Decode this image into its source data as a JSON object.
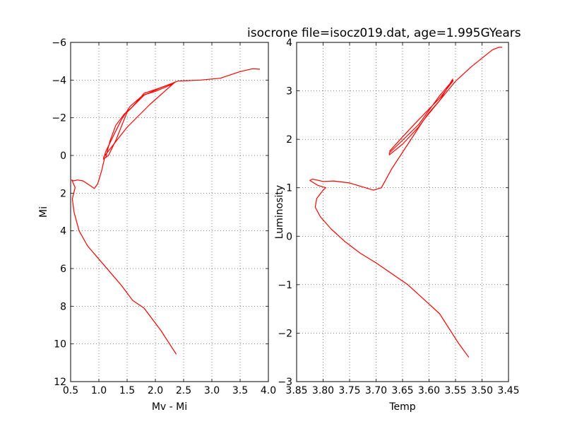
{
  "chart_data": [
    {
      "type": "line",
      "title": "",
      "xlabel": "Mv - Mi",
      "ylabel": "Mi",
      "xlim": [
        0.5,
        4.0
      ],
      "ylim": [
        12,
        -6
      ],
      "y_inverted": true,
      "grid": true,
      "xticks": [
        "0.5",
        "1.0",
        "1.5",
        "2.0",
        "2.5",
        "3.0",
        "3.5",
        "4.0"
      ],
      "yticks": [
        "−6",
        "−4",
        "−2",
        "0",
        "2",
        "4",
        "6",
        "8",
        "10",
        "12"
      ],
      "series_color": "#ff0000",
      "segments": [
        [
          [
            2.37,
            10.55
          ],
          [
            2.1,
            9.3
          ],
          [
            1.8,
            8.1
          ],
          [
            1.6,
            7.7
          ],
          [
            1.4,
            6.9
          ],
          [
            1.2,
            6.2
          ],
          [
            1.0,
            5.5
          ],
          [
            0.8,
            4.8
          ],
          [
            0.65,
            4.0
          ],
          [
            0.56,
            3.0
          ],
          [
            0.53,
            2.3
          ],
          [
            0.58,
            1.7
          ],
          [
            0.52,
            1.3
          ],
          [
            0.55,
            1.35
          ],
          [
            0.62,
            1.3
          ],
          [
            0.72,
            1.35
          ],
          [
            0.82,
            1.55
          ],
          [
            0.92,
            1.75
          ],
          [
            0.98,
            1.5
          ],
          [
            1.05,
            0.8
          ],
          [
            1.1,
            0.15
          ],
          [
            1.17,
            0.0
          ],
          [
            1.3,
            -0.8
          ],
          [
            1.5,
            -2.3
          ],
          [
            1.8,
            -3.2
          ],
          [
            2.1,
            -3.6
          ],
          [
            2.4,
            -3.95
          ],
          [
            2.8,
            -4.0
          ],
          [
            3.15,
            -4.1
          ],
          [
            3.5,
            -4.45
          ],
          [
            3.72,
            -4.6
          ],
          [
            3.85,
            -4.58
          ]
        ],
        [
          [
            2.3,
            -3.78
          ],
          [
            2.0,
            -3.4
          ],
          [
            1.78,
            -3.2
          ],
          [
            1.55,
            -2.6
          ],
          [
            1.4,
            -1.9
          ],
          [
            1.25,
            -1.0
          ],
          [
            1.12,
            -0.2
          ],
          [
            1.08,
            0.2
          ],
          [
            1.12,
            0.1
          ],
          [
            1.2,
            -0.8
          ],
          [
            1.3,
            -1.6
          ],
          [
            1.45,
            -2.2
          ],
          [
            1.6,
            -2.6
          ],
          [
            1.8,
            -3.3
          ],
          [
            2.05,
            -3.55
          ],
          [
            2.3,
            -3.82
          ],
          [
            2.35,
            -3.9
          ],
          [
            1.9,
            -2.7
          ],
          [
            1.5,
            -1.5
          ],
          [
            1.08,
            0.1
          ]
        ]
      ]
    },
    {
      "type": "line",
      "title": "isocrone file=isocz019.dat, age=1.995GYears",
      "xlabel": "Temp",
      "ylabel": "Luminosity",
      "xlim": [
        3.85,
        3.45
      ],
      "ylim": [
        -3,
        4
      ],
      "x_inverted": true,
      "grid": true,
      "xticks": [
        "3.85",
        "3.80",
        "3.75",
        "3.70",
        "3.65",
        "3.60",
        "3.55",
        "3.50",
        "3.45"
      ],
      "yticks": [
        "−3",
        "−2",
        "−1",
        "0",
        "1",
        "2",
        "3",
        "4"
      ],
      "series_color": "#ff0000",
      "segments": [
        [
          [
            3.525,
            -2.5
          ],
          [
            3.545,
            -2.2
          ],
          [
            3.58,
            -1.6
          ],
          [
            3.61,
            -1.3
          ],
          [
            3.64,
            -1.0
          ],
          [
            3.66,
            -0.85
          ],
          [
            3.7,
            -0.55
          ],
          [
            3.73,
            -0.35
          ],
          [
            3.76,
            -0.1
          ],
          [
            3.785,
            0.15
          ],
          [
            3.805,
            0.4
          ],
          [
            3.815,
            0.6
          ],
          [
            3.812,
            0.78
          ],
          [
            3.8,
            0.95
          ],
          [
            3.795,
            1.0
          ],
          [
            3.81,
            1.05
          ],
          [
            3.825,
            1.15
          ],
          [
            3.82,
            1.18
          ],
          [
            3.8,
            1.13
          ],
          [
            3.78,
            1.14
          ],
          [
            3.75,
            1.1
          ],
          [
            3.72,
            1.0
          ],
          [
            3.705,
            0.95
          ],
          [
            3.69,
            1.0
          ],
          [
            3.67,
            1.4
          ],
          [
            3.64,
            1.9
          ],
          [
            3.61,
            2.4
          ],
          [
            3.58,
            2.8
          ],
          [
            3.55,
            3.2
          ],
          [
            3.52,
            3.5
          ],
          [
            3.48,
            3.85
          ],
          [
            3.468,
            3.9
          ],
          [
            3.462,
            3.9
          ]
        ],
        [
          [
            3.555,
            3.25
          ],
          [
            3.58,
            2.8
          ],
          [
            3.6,
            2.55
          ],
          [
            3.62,
            2.25
          ],
          [
            3.65,
            1.9
          ],
          [
            3.675,
            1.68
          ],
          [
            3.675,
            1.72
          ],
          [
            3.65,
            1.98
          ],
          [
            3.62,
            2.3
          ],
          [
            3.6,
            2.6
          ],
          [
            3.58,
            2.9
          ],
          [
            3.555,
            3.22
          ],
          [
            3.555,
            3.2
          ],
          [
            3.58,
            2.85
          ],
          [
            3.62,
            2.4
          ],
          [
            3.65,
            2.05
          ],
          [
            3.675,
            1.75
          ]
        ]
      ]
    }
  ]
}
